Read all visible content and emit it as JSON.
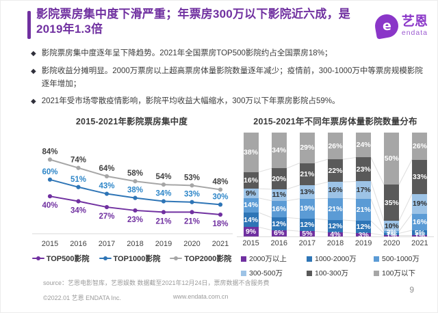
{
  "header": {
    "title": "影院票房集中度下滑严重；年票房300万以下影院近六成，是2019年1.3倍",
    "logo": {
      "symbol": "e",
      "name": "艺恩",
      "subname": "endata"
    }
  },
  "bullets": [
    {
      "glyph": "◆",
      "text": "影院票房集中度逐年呈下降趋势。2021年全国票房TOP500影院约占全国票房18%；"
    },
    {
      "glyph": "◆",
      "text": "影院收益分摊明显。2000万票房以上超高票房体量影院数量逐年减少；疫情前，300-1000万中等票房规模影院逐年增加；"
    },
    {
      "glyph": "◆",
      "text": "2021年受市场零散疫情影响，影院平均收益大幅缩水，300万以下年票房影院占59%。"
    }
  ],
  "chart_data": [
    {
      "type": "line",
      "title": "2015-2021年影院票房集中度",
      "x": [
        "2015",
        "2016",
        "2017",
        "2018",
        "2019",
        "2020",
        "2021"
      ],
      "series": [
        {
          "name": "TOP500影院",
          "color": "#7030A0",
          "label_color": "#7030A0",
          "label_position": "below",
          "values": [
            40,
            34,
            27,
            23,
            21,
            21,
            18
          ]
        },
        {
          "name": "TOP1000影院",
          "color": "#2E75B6",
          "label_color": "#2E86C8",
          "label_position": "above",
          "values": [
            60,
            51,
            43,
            38,
            34,
            33,
            30
          ]
        },
        {
          "name": "TOP2000影院",
          "color": "#A6A6A6",
          "label_color": "#404040",
          "label_position": "above",
          "values": [
            84,
            74,
            64,
            58,
            54,
            53,
            48
          ]
        }
      ],
      "ylim": [
        0,
        100
      ],
      "grid": false,
      "legend_position": "bottom"
    },
    {
      "type": "bar",
      "stacked": true,
      "title": "2015-2021年不同年票房体量影院数量分布",
      "categories": [
        "2015",
        "2016",
        "2017",
        "2018",
        "2019",
        "2020",
        "2021"
      ],
      "series": [
        {
          "name": "2000万以上",
          "color": "#7030A0",
          "text_color": "#ffffff",
          "values": [
            9,
            6,
            5,
            4,
            3,
            1,
            1
          ]
        },
        {
          "name": "1000-2000万",
          "color": "#2E75B6",
          "text_color": "#ffffff",
          "values": [
            14,
            12,
            12,
            12,
            12,
            2,
            5
          ]
        },
        {
          "name": "500-1000万",
          "color": "#5B9BD5",
          "text_color": "#ffffff",
          "values": [
            14,
            16,
            19,
            21,
            21,
            2,
            16
          ]
        },
        {
          "name": "300-500万",
          "color": "#9DC3E6",
          "text_color": "#303030",
          "values": [
            9,
            11,
            13,
            16,
            17,
            10,
            19
          ]
        },
        {
          "name": "100-300万",
          "color": "#595959",
          "text_color": "#ffffff",
          "values": [
            16,
            20,
            21,
            22,
            23,
            35,
            33
          ]
        },
        {
          "name": "100万以下",
          "color": "#A6A6A6",
          "text_color": "#ffffff",
          "values": [
            38,
            34,
            29,
            26,
            24,
            50,
            26
          ]
        }
      ],
      "ylim": [
        0,
        100
      ],
      "grid": false,
      "legend_position": "bottom"
    }
  ],
  "footer": {
    "source_line": "source：艺恩电影智库，艺恩娱数    数据截至2021年12月24日，票房数据不含服务费",
    "copyright": "©2022.01 艺恩 ENDATA Inc.",
    "website": "www.endata.com.cn",
    "page_number": "9"
  },
  "colors": {
    "accent_purple": "#7030A0",
    "logo_purple": "#8A36C8",
    "axis_line": "#d9d9d9",
    "connector_line": "#dddddd"
  }
}
